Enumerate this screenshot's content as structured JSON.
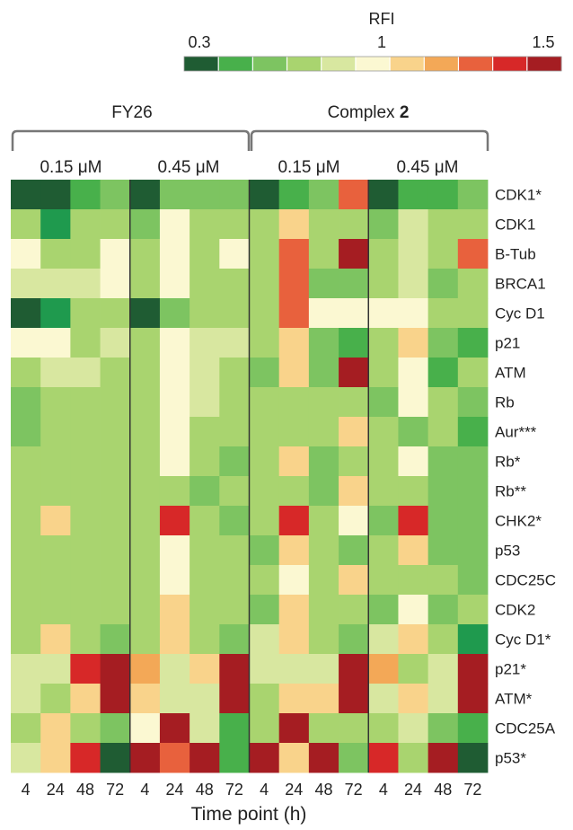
{
  "chart_data": {
    "type": "heatmap",
    "colorbar": {
      "title": "RFI",
      "tick_labels": [
        "0.3",
        "1",
        "1.5"
      ],
      "colors": [
        "#1f5c33",
        "#1f9a4e",
        "#48b04b",
        "#7dc461",
        "#a9d46f",
        "#d8e7a0",
        "#fbf8d2",
        "#f9d38b",
        "#f3a857",
        "#e8613d",
        "#d72828",
        "#a51d22"
      ]
    },
    "groups": [
      {
        "name": "FY26",
        "name_bold": "",
        "concentrations": [
          "0.15 μM",
          "0.45 μM"
        ]
      },
      {
        "name": "Complex ",
        "name_bold": "2",
        "concentrations": [
          "0.15 μM",
          "0.45 μM"
        ]
      }
    ],
    "time_points": [
      "4",
      "24",
      "48",
      "72"
    ],
    "xlabel": "Time point (h)",
    "rows": [
      "CDK1*",
      "CDK1",
      "B-Tub",
      "BRCA1",
      "Cyc D1",
      "p21",
      "ATM",
      "Rb",
      "Aur***",
      "Rb*",
      "Rb**",
      "CHK2*",
      "p53",
      "CDC25C",
      "CDK2",
      "Cyc D1*",
      "p21*",
      "ATM*",
      "CDC25A",
      "p53*"
    ],
    "values": [
      [
        0,
        0,
        2,
        3,
        0,
        3,
        3,
        3,
        0,
        2,
        3,
        9,
        0,
        2,
        2,
        3
      ],
      [
        4,
        1,
        4,
        4,
        3,
        6,
        4,
        4,
        4,
        7,
        4,
        4,
        3,
        5,
        4,
        4
      ],
      [
        6,
        4,
        4,
        6,
        4,
        6,
        4,
        6,
        4,
        9,
        4,
        11,
        4,
        5,
        4,
        9
      ],
      [
        5,
        5,
        5,
        6,
        4,
        6,
        4,
        4,
        4,
        9,
        3,
        3,
        4,
        5,
        3,
        4
      ],
      [
        0,
        1,
        4,
        4,
        0,
        3,
        4,
        4,
        4,
        9,
        6,
        6,
        6,
        6,
        4,
        4
      ],
      [
        6,
        6,
        4,
        5,
        4,
        6,
        5,
        5,
        4,
        7,
        3,
        2,
        4,
        7,
        3,
        2
      ],
      [
        4,
        5,
        5,
        4,
        4,
        6,
        5,
        4,
        3,
        7,
        3,
        11,
        4,
        6,
        2,
        4
      ],
      [
        3,
        4,
        4,
        4,
        4,
        6,
        5,
        4,
        4,
        4,
        4,
        4,
        3,
        6,
        4,
        3
      ],
      [
        3,
        4,
        4,
        4,
        4,
        6,
        4,
        4,
        4,
        4,
        4,
        7,
        4,
        3,
        4,
        2
      ],
      [
        4,
        4,
        4,
        4,
        4,
        6,
        4,
        3,
        4,
        7,
        3,
        4,
        4,
        6,
        3,
        3
      ],
      [
        4,
        4,
        4,
        4,
        4,
        4,
        3,
        4,
        4,
        4,
        3,
        7,
        4,
        4,
        3,
        3
      ],
      [
        4,
        7,
        4,
        4,
        4,
        10,
        4,
        3,
        4,
        10,
        4,
        6,
        3,
        10,
        3,
        3
      ],
      [
        4,
        4,
        4,
        4,
        4,
        6,
        4,
        4,
        3,
        7,
        4,
        3,
        4,
        7,
        3,
        3
      ],
      [
        4,
        4,
        4,
        4,
        4,
        6,
        4,
        4,
        4,
        6,
        4,
        7,
        4,
        4,
        4,
        3
      ],
      [
        4,
        4,
        4,
        4,
        4,
        7,
        4,
        4,
        3,
        7,
        4,
        4,
        3,
        6,
        3,
        4
      ],
      [
        4,
        7,
        4,
        3,
        4,
        7,
        4,
        3,
        5,
        7,
        4,
        3,
        5,
        7,
        4,
        1
      ],
      [
        5,
        5,
        10,
        12,
        8,
        5,
        7,
        12,
        5,
        5,
        5,
        12,
        8,
        4,
        5,
        12
      ],
      [
        5,
        4,
        7,
        12,
        7,
        5,
        5,
        12,
        4,
        7,
        7,
        12,
        5,
        7,
        5,
        12
      ],
      [
        4,
        7,
        4,
        3,
        6,
        11,
        5,
        2,
        4,
        11,
        4,
        4,
        4,
        5,
        3,
        2
      ],
      [
        5,
        7,
        10,
        0,
        11,
        9,
        11,
        2,
        11,
        7,
        11,
        3,
        10,
        4,
        11,
        0
      ]
    ]
  }
}
